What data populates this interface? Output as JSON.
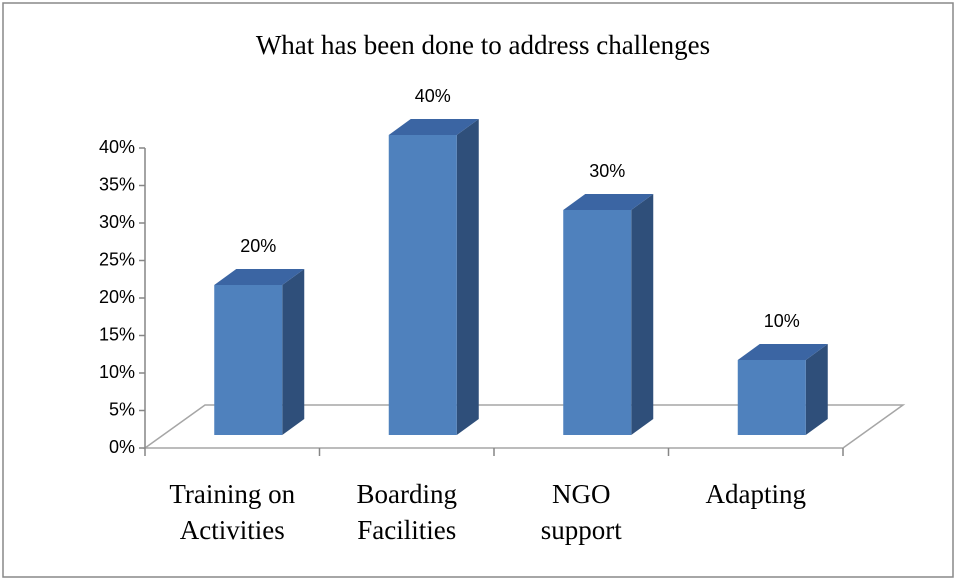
{
  "chart_data": {
    "type": "bar3d",
    "title": "What has been done to address challenges",
    "categories": [
      [
        "Training on",
        "Activities"
      ],
      [
        "Boarding",
        "Facilities"
      ],
      [
        "NGO",
        "support"
      ],
      [
        "Adapting"
      ]
    ],
    "values": [
      20,
      40,
      30,
      10
    ],
    "value_labels": [
      "20%",
      "40%",
      "30%",
      "10%"
    ],
    "color": "#4f81bd",
    "ylim": [
      0,
      40
    ],
    "yticks": [
      {
        "value": 0,
        "label": "0%"
      },
      {
        "value": 5,
        "label": "5%"
      },
      {
        "value": 10,
        "label": "10%"
      },
      {
        "value": 15,
        "label": "15%"
      },
      {
        "value": 20,
        "label": "20%"
      },
      {
        "value": 25,
        "label": "25%"
      },
      {
        "value": 30,
        "label": "30%"
      },
      {
        "value": 35,
        "label": "35%"
      },
      {
        "value": 40,
        "label": "40%"
      }
    ],
    "grid": false
  }
}
